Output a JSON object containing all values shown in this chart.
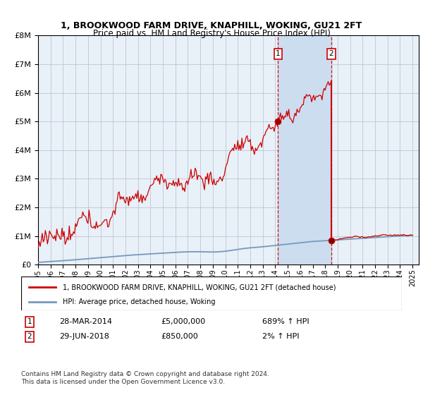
{
  "title": "1, BROOKWOOD FARM DRIVE, KNAPHILL, WOKING, GU21 2FT",
  "subtitle": "Price paid vs. HM Land Registry's House Price Index (HPI)",
  "hpi_label": "HPI: Average price, detached house, Woking",
  "property_label": "1, BROOKWOOD FARM DRIVE, KNAPHILL, WOKING, GU21 2FT (detached house)",
  "annotation1_date": "28-MAR-2014",
  "annotation1_price": "£5,000,000",
  "annotation1_hpi": "689% ↑ HPI",
  "annotation2_date": "29-JUN-2018",
  "annotation2_price": "£850,000",
  "annotation2_hpi": "2% ↑ HPI",
  "sale1_year": 2014.23,
  "sale1_value": 5000000,
  "sale2_year": 2018.49,
  "sale2_value": 850000,
  "hpi_color": "#7799bb",
  "property_color": "#cc0000",
  "shade_color": "#ccddf0",
  "background_color": "#e8f0f8",
  "grid_color": "#bbbbcc",
  "ylim_max": 8000000,
  "footer": "Contains HM Land Registry data © Crown copyright and database right 2024.\nThis data is licensed under the Open Government Licence v3.0."
}
